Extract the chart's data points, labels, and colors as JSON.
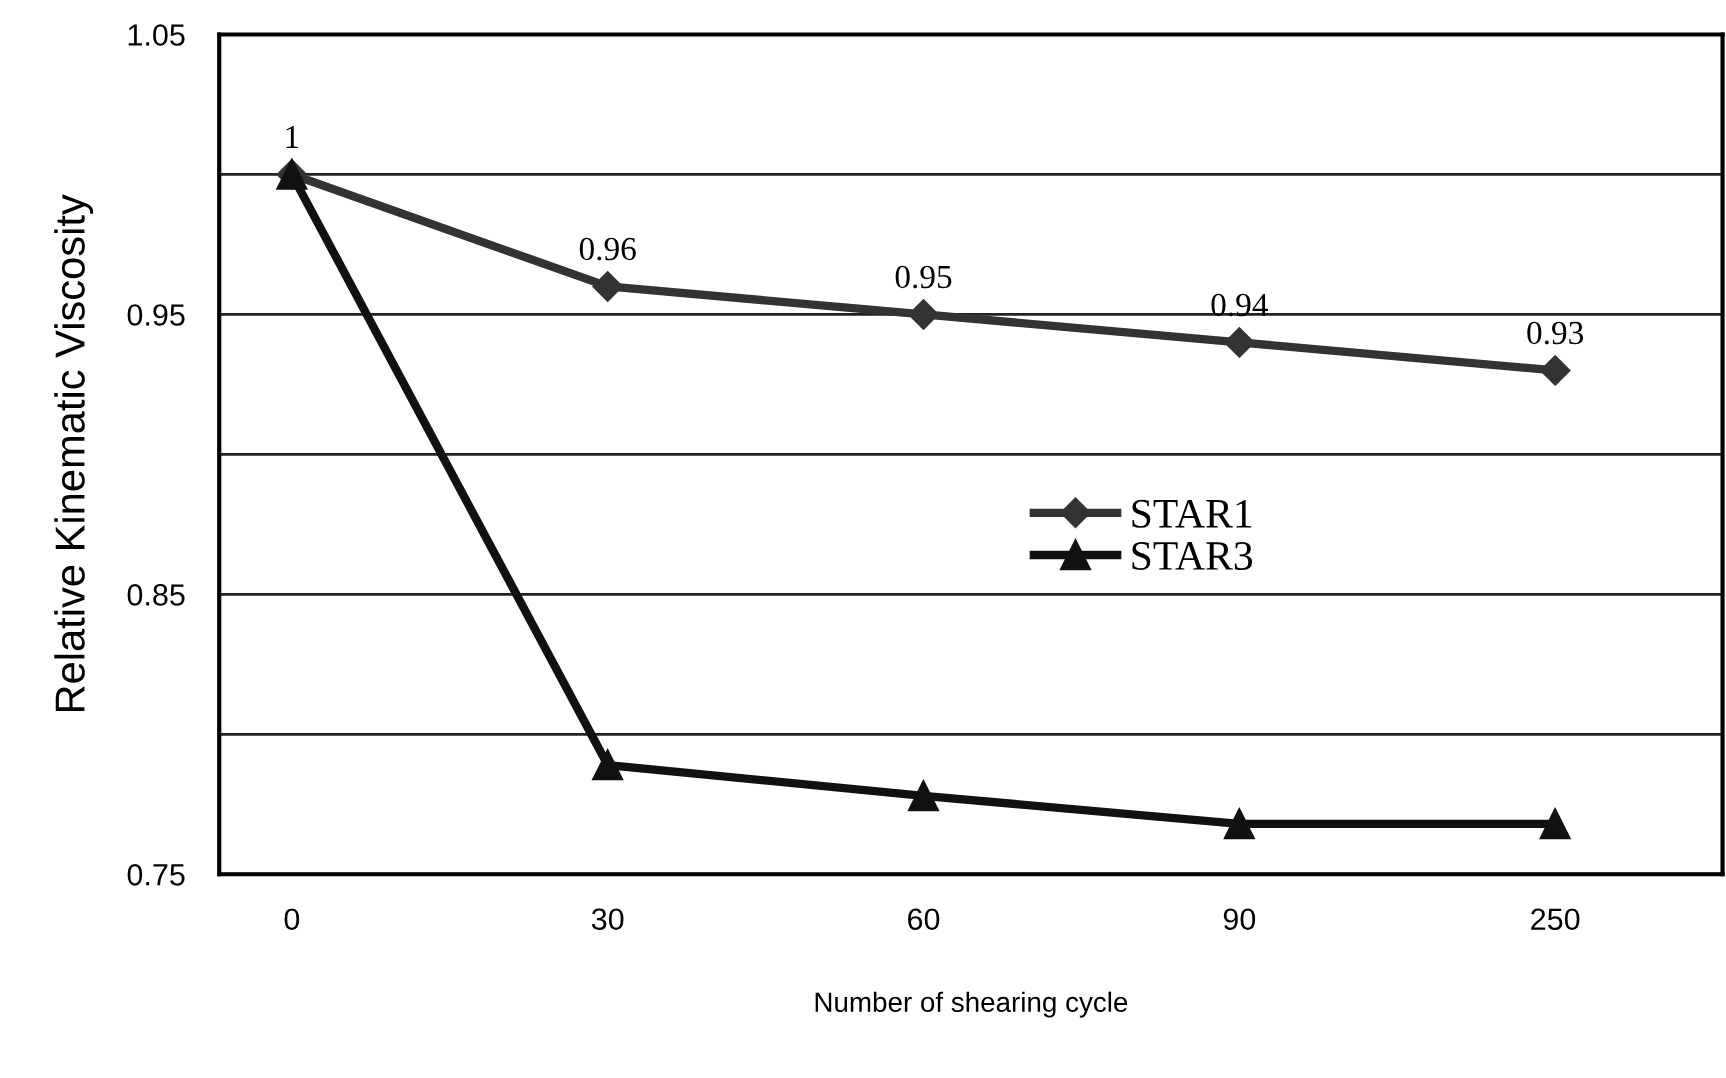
{
  "chart_data": {
    "type": "line",
    "xlabel": "Number of shearing cycle",
    "ylabel": "Relative Kinematic Viscosity",
    "categories": [
      "0",
      "30",
      "60",
      "90",
      "250"
    ],
    "series": [
      {
        "name": "STAR1",
        "color": "#333333",
        "marker": "diamond",
        "values": [
          1,
          0.96,
          0.95,
          0.94,
          0.93
        ],
        "value_labels": [
          "1",
          "0.96",
          "0.95",
          "0.94",
          "0.93"
        ]
      },
      {
        "name": "STAR3",
        "color": "#111111",
        "marker": "triangle",
        "values": [
          1,
          0.789,
          0.778,
          0.768,
          0.768
        ]
      }
    ],
    "ylim": [
      0.75,
      1.05
    ],
    "yticks": [
      0.75,
      {
        "value": 0.8,
        "label": null
      },
      0.85,
      {
        "value": 0.9,
        "label": null
      },
      0.95,
      {
        "value": 1.0,
        "label": null
      },
      1.05
    ],
    "grid": "y",
    "legend": "center",
    "line_style": "solid"
  }
}
